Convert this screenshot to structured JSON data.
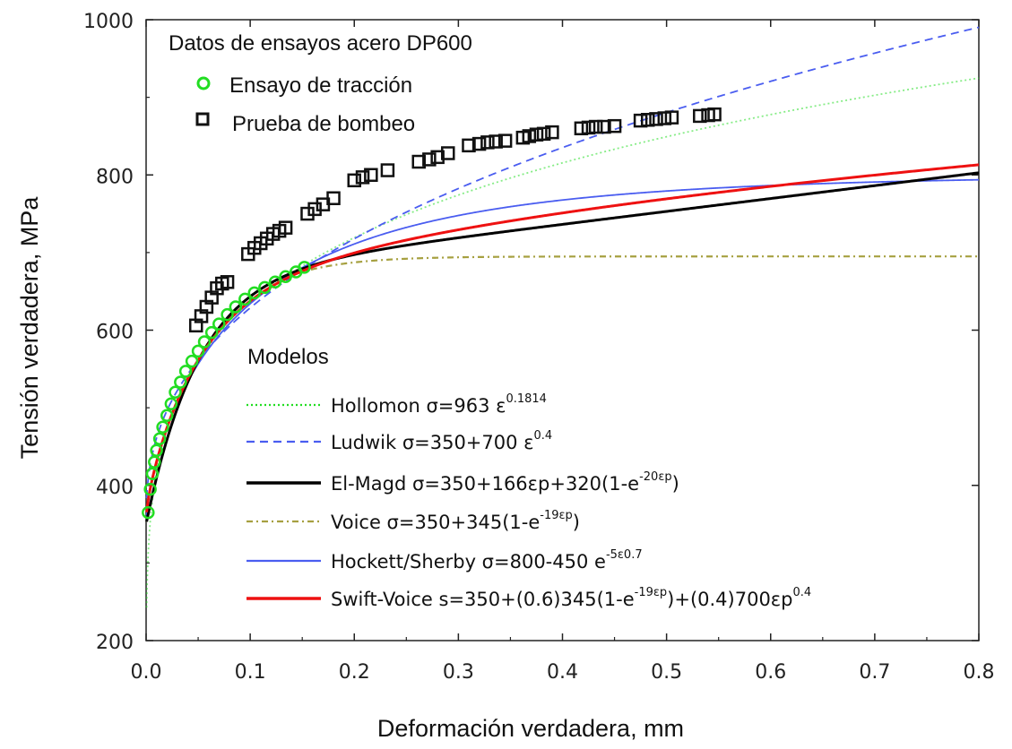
{
  "chart_data": {
    "type": "line",
    "xlabel": "Deformación verdadera, mm",
    "ylabel": "Tensión verdadera, MPa",
    "xlim": [
      0,
      0.8
    ],
    "ylim": [
      200,
      1000
    ],
    "xticks": [
      "0.0",
      "0.1",
      "0.2",
      "0.3",
      "0.4",
      "0.5",
      "0.6",
      "0.7",
      "0.8"
    ],
    "yticks": [
      "200",
      "400",
      "600",
      "800",
      "1000"
    ],
    "data_legend": {
      "title": "Datos de ensayos acero DP600",
      "placement": "top-left",
      "entries": [
        {
          "label": "Ensayo de tracción",
          "marker": "circle",
          "color": "#22dd22"
        },
        {
          "label": "Prueba de bombeo",
          "marker": "square",
          "color": "#111111"
        }
      ]
    },
    "models_legend": {
      "title": "Modelos",
      "placement": "center-left"
    },
    "scatter_series": [
      {
        "name": "Ensayo de tracción",
        "color": "#22dd22",
        "marker": "circle",
        "x": [
          0.002,
          0.004,
          0.006,
          0.008,
          0.01,
          0.013,
          0.016,
          0.02,
          0.024,
          0.028,
          0.033,
          0.038,
          0.044,
          0.05,
          0.056,
          0.063,
          0.07,
          0.078,
          0.086,
          0.095,
          0.104,
          0.114,
          0.124,
          0.134,
          0.144,
          0.152
        ],
        "y": [
          365,
          395,
          415,
          430,
          445,
          460,
          475,
          490,
          505,
          520,
          533,
          547,
          560,
          573,
          585,
          597,
          608,
          620,
          630,
          640,
          648,
          655,
          662,
          669,
          675,
          681
        ]
      },
      {
        "name": "Prueba de bombeo",
        "color": "#111111",
        "marker": "square",
        "x": [
          0.048,
          0.053,
          0.058,
          0.063,
          0.068,
          0.073,
          0.078,
          0.098,
          0.104,
          0.11,
          0.116,
          0.122,
          0.128,
          0.134,
          0.155,
          0.162,
          0.17,
          0.18,
          0.2,
          0.208,
          0.216,
          0.232,
          0.262,
          0.272,
          0.28,
          0.29,
          0.31,
          0.32,
          0.328,
          0.336,
          0.345,
          0.362,
          0.368,
          0.375,
          0.382,
          0.39,
          0.418,
          0.425,
          0.432,
          0.44,
          0.45,
          0.475,
          0.482,
          0.49,
          0.498,
          0.505,
          0.532,
          0.54,
          0.546
        ],
        "y": [
          606,
          618,
          630,
          642,
          654,
          660,
          662,
          698,
          706,
          712,
          718,
          724,
          728,
          732,
          750,
          756,
          762,
          770,
          793,
          797,
          800,
          806,
          817,
          820,
          823,
          828,
          838,
          840,
          842,
          843,
          844,
          848,
          850,
          852,
          853,
          855,
          860,
          861,
          862,
          862,
          863,
          870,
          871,
          872,
          873,
          874,
          876,
          877,
          878
        ]
      }
    ],
    "series": [
      {
        "name": "Hollomon",
        "formula": "σ=963 ε",
        "sup": "0.1814",
        "color": "#22dd22",
        "dash": "dotted",
        "eq": "hollomon"
      },
      {
        "name": "Ludwik",
        "formula": "σ=350+700 ε",
        "sup": "0.4",
        "color": "#4a5df0",
        "dash": "dashed",
        "eq": "ludwik"
      },
      {
        "name": "El-Magd",
        "formula": "σ=350+166εp+320(1-e",
        "sup": "-20εp",
        "tail": ")",
        "color": "#000000",
        "dash": "solid",
        "eq": "elmagd"
      },
      {
        "name": "Voice",
        "formula": "σ=350+345(1-e",
        "sup": "-19εp",
        "tail": ")",
        "color": "#a6a040",
        "dash": "dashdot",
        "eq": "voice"
      },
      {
        "name": "Hockett/Sherby",
        "formula": "σ=800-450 e",
        "sup": "-5ε0.7",
        "color": "#4a5df0",
        "dash": "solid",
        "eq": "hockett"
      },
      {
        "name": "Swift-Voice",
        "formula": "s=350+(0.6)345(1-e",
        "sup": "-19εp",
        "tail": ")+(0.4)700εp",
        "sup2": "0.4",
        "color": "#ee1111",
        "dash": "solid",
        "eq": "swiftvoice"
      }
    ]
  }
}
